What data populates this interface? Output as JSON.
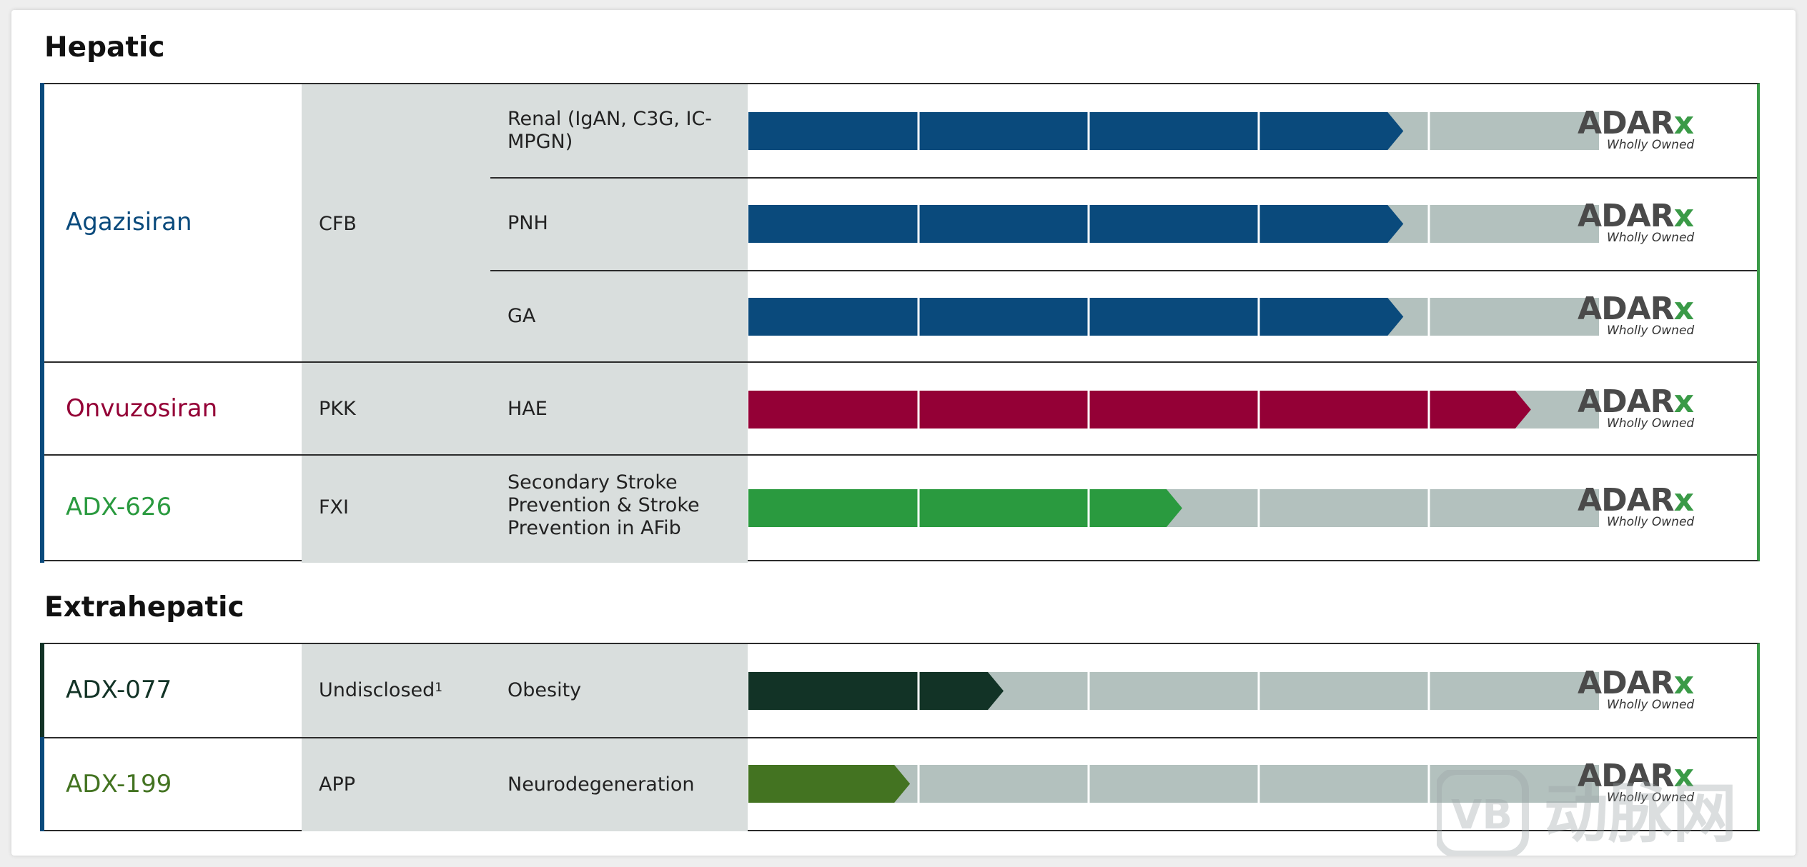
{
  "sections": [
    {
      "title": "Hepatic"
    },
    {
      "title": "Extrahepatic"
    }
  ],
  "colors": {
    "agazisiran": "#0a4a7c",
    "onvuzosiran": "#940036",
    "adx626": "#2a9a3f",
    "adx077": "#123326",
    "adx199": "#437321",
    "pending": "#b3c1be",
    "target_bg": "#d9dedd",
    "border_green": "#3a9a47"
  },
  "rows": [
    {
      "drug": "Agazisiran",
      "target": "CFB",
      "indication": "Renal (IgAN, C3G, IC-MPGN)",
      "phases_filled": 3.85,
      "logo": "ADAR",
      "logo_x": "x",
      "logo_sub": "Wholly Owned"
    },
    {
      "drug": "",
      "target": "",
      "indication": "PNH",
      "phases_filled": 3.85,
      "logo": "ADAR",
      "logo_x": "x",
      "logo_sub": "Wholly Owned"
    },
    {
      "drug": "",
      "target": "",
      "indication": "GA",
      "phases_filled": 3.85,
      "logo": "ADAR",
      "logo_x": "x",
      "logo_sub": "Wholly Owned"
    },
    {
      "drug": "Onvuzosiran",
      "target": "PKK",
      "indication": "HAE",
      "phases_filled": 4.6,
      "logo": "ADAR",
      "logo_x": "x",
      "logo_sub": "Wholly Owned"
    },
    {
      "drug": "ADX-626",
      "target": "FXI",
      "indication": "Secondary Stroke Prevention & Stroke Prevention in AFib",
      "phases_filled": 2.55,
      "logo": "ADAR",
      "logo_x": "x",
      "logo_sub": "Wholly Owned"
    },
    {
      "drug": "ADX-077",
      "target": "Undisclosed",
      "target_sup": "1",
      "indication": "Obesity",
      "phases_filled": 1.5,
      "logo": "ADAR",
      "logo_x": "x",
      "logo_sub": "Wholly Owned"
    },
    {
      "drug": "ADX-199",
      "target": "APP",
      "indication": "Neurodegeneration",
      "phases_filled": 0.95,
      "logo": "ADAR",
      "logo_x": "x",
      "logo_sub": "Wholly Owned"
    }
  ],
  "chart_data": {
    "type": "bar",
    "phase_segments": 5,
    "categories": [
      "Renal (IgAN, C3G, IC-MPGN)",
      "PNH",
      "GA",
      "HAE",
      "Secondary Stroke Prevention & Stroke Prevention in AFib",
      "Obesity",
      "Neurodegeneration"
    ],
    "values": [
      3.85,
      3.85,
      3.85,
      4.6,
      2.55,
      1.5,
      0.95
    ],
    "xlim": [
      0,
      5
    ]
  },
  "watermark": {
    "text": "动脉网",
    "mark": "VB"
  }
}
